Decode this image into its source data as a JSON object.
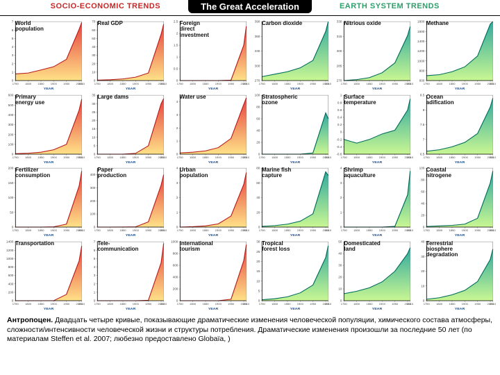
{
  "header": {
    "left_label": "SOCIO-ECONOMIC TRENDS",
    "left_color": "#c62828",
    "main_title": "The Great Acceleration",
    "right_label": "EARTH SYSTEM TRENDS",
    "right_color": "#2e9e6b"
  },
  "caption": {
    "bold": "Антропоцен.",
    "text": " Двадцать четыре кривые, показывающие драматические изменения человеческой популяции, химического состава атмосферы, сложности/интенсивности человеческой жизни и структуры потребления. Драматические изменения произошли за последние 50 лет (по материалам Steffen et al. 2007; любезно предоставлено Globaïa, )"
  },
  "chart_common": {
    "x_label": "YEAR",
    "x_ticks": [
      "1750",
      "1800",
      "1850",
      "1900",
      "1950",
      "2000",
      "2010"
    ],
    "axis_color": "#888",
    "tick_color": "#888",
    "label_fontsize": 6,
    "title_fontsize": 8
  },
  "socio_style": {
    "fill_top": "#e53935",
    "fill_bottom": "#ffe082",
    "stroke": "#b71c1c"
  },
  "earth_style": {
    "fill_top": "#26a69a",
    "fill_bottom": "#c6f68d",
    "stroke": "#006b5a"
  },
  "panels": [
    {
      "title": "World\npopulation",
      "group": "socio",
      "ymax": 7,
      "y_ticks": [
        0,
        1,
        2,
        3,
        4,
        5,
        6,
        7
      ],
      "values": [
        0.79,
        0.9,
        1.26,
        1.65,
        2.52,
        6.1,
        6.9
      ]
    },
    {
      "title": "Real GDP",
      "group": "socio",
      "ymax": 70,
      "y_ticks": [
        0,
        10,
        20,
        30,
        40,
        50,
        60,
        70
      ],
      "values": [
        0.5,
        1,
        2,
        4,
        9,
        55,
        67
      ]
    },
    {
      "title": "Foreign\ndirect\ninvestment",
      "group": "socio",
      "ymax": 2.5,
      "y_ticks": [
        0,
        0.5,
        1,
        1.5,
        2,
        2.5
      ],
      "values": [
        0,
        0,
        0,
        0,
        0.02,
        1.5,
        2.3
      ]
    },
    {
      "title": "Carbon dioxide",
      "group": "earth",
      "ymax": 390,
      "y_ticks": [
        270,
        300,
        330,
        360,
        390
      ],
      "ymin": 270,
      "values": [
        278,
        283,
        288,
        296,
        311,
        370,
        390
      ]
    },
    {
      "title": "Nitrious oxide",
      "group": "earth",
      "ymax": 330,
      "y_ticks": [
        270,
        285,
        300,
        315,
        330
      ],
      "ymin": 270,
      "values": [
        270,
        271,
        273,
        278,
        288,
        316,
        325
      ]
    },
    {
      "title": "Methane",
      "group": "earth",
      "ymax": 1800,
      "y_ticks": [
        600,
        800,
        1000,
        1200,
        1400,
        1600,
        1800
      ],
      "ymin": 600,
      "values": [
        700,
        720,
        780,
        880,
        1100,
        1750,
        1800
      ]
    },
    {
      "title": "Primary\nenergy use",
      "group": "socio",
      "ymax": 600,
      "y_ticks": [
        0,
        100,
        200,
        300,
        400,
        500,
        600
      ],
      "values": [
        5,
        10,
        20,
        45,
        100,
        450,
        560
      ]
    },
    {
      "title": "Large dams",
      "group": "socio",
      "ymax": 35,
      "y_ticks": [
        0,
        5,
        10,
        15,
        20,
        25,
        30,
        35
      ],
      "values": [
        0,
        0,
        0,
        0.5,
        5,
        30,
        33
      ]
    },
    {
      "title": "Water use",
      "group": "socio",
      "ymax": 4.5,
      "y_ticks": [
        0,
        1,
        2,
        3,
        4
      ],
      "values": [
        0.1,
        0.15,
        0.25,
        0.5,
        1.2,
        3.8,
        4.3
      ]
    },
    {
      "title": "Stratospheric\nozone",
      "group": "earth",
      "ymax": 100,
      "y_ticks": [
        0,
        20,
        40,
        60,
        80,
        100
      ],
      "ymin": 0,
      "values": [
        0,
        0,
        0,
        0,
        2,
        70,
        60
      ]
    },
    {
      "title": "Surface\ntemperature",
      "group": "earth",
      "ymax": 1.0,
      "y_ticks": [
        -0.6,
        -0.4,
        -0.2,
        0,
        0.2,
        0.4,
        0.6,
        0.8,
        1.0
      ],
      "ymin": -0.6,
      "values": [
        -0.2,
        -0.3,
        -0.2,
        -0.05,
        0.05,
        0.6,
        0.9
      ]
    },
    {
      "title": "Ocean\nadification",
      "group": "earth",
      "ymax": 8.5,
      "y_ticks": [
        6.5,
        7,
        7.5,
        8,
        8.5
      ],
      "ymin": 6.5,
      "values": [
        6.6,
        6.65,
        6.75,
        6.9,
        7.2,
        8.1,
        8.4
      ]
    },
    {
      "title": "Fertilizer\nconsumption",
      "group": "socio",
      "ymax": 200,
      "y_ticks": [
        0,
        50,
        100,
        150,
        200
      ],
      "values": [
        0,
        0,
        0,
        1,
        10,
        140,
        190
      ]
    },
    {
      "title": "Paper\nproduction",
      "group": "socio",
      "ymax": 450,
      "y_ticks": [
        0,
        100,
        200,
        300,
        400
      ],
      "values": [
        0,
        0,
        0.5,
        2,
        40,
        320,
        400
      ]
    },
    {
      "title": "Urban\npopulation",
      "group": "socio",
      "ymax": 4,
      "y_ticks": [
        0,
        1,
        2,
        3,
        4
      ],
      "values": [
        0,
        0.03,
        0.08,
        0.22,
        0.75,
        2.9,
        3.7
      ]
    },
    {
      "title": "Marine fish\ncapture",
      "group": "earth",
      "ymax": 80,
      "y_ticks": [
        0,
        20,
        40,
        60,
        80
      ],
      "values": [
        1,
        2,
        4,
        8,
        18,
        75,
        70
      ]
    },
    {
      "title": "Shrimp\naquaculture",
      "group": "earth",
      "ymax": 4,
      "y_ticks": [
        0,
        1,
        2,
        3,
        4
      ],
      "values": [
        0,
        0,
        0,
        0,
        0.05,
        2.2,
        3.8
      ]
    },
    {
      "title": "Coastal\nnitrogene",
      "group": "earth",
      "ymax": 100,
      "y_ticks": [
        0,
        20,
        40,
        60,
        80,
        100
      ],
      "values": [
        1,
        2,
        3,
        5,
        15,
        75,
        95
      ]
    },
    {
      "title": "Transportation",
      "group": "socio",
      "ymax": 1400,
      "y_ticks": [
        0,
        200,
        400,
        600,
        800,
        1000,
        1200,
        1400
      ],
      "values": [
        0,
        0,
        0,
        0,
        150,
        950,
        1300
      ]
    },
    {
      "title": "Tele-\ncommunication",
      "group": "socio",
      "ymax": 7,
      "y_ticks": [
        0,
        1,
        2,
        3,
        4,
        5,
        6,
        7
      ],
      "values": [
        0,
        0,
        0,
        0,
        0.05,
        4.5,
        6.8
      ]
    },
    {
      "title": "International\ntourism",
      "group": "socio",
      "ymax": 1000,
      "y_ticks": [
        0,
        200,
        400,
        600,
        800,
        1000
      ],
      "values": [
        0,
        0,
        0,
        0,
        25,
        680,
        950
      ]
    },
    {
      "title": "Tropical\nforest loss",
      "group": "earth",
      "ymax": 30,
      "y_ticks": [
        0,
        5,
        10,
        15,
        20,
        25,
        30
      ],
      "values": [
        0.5,
        1,
        2,
        4,
        8,
        22,
        28
      ]
    },
    {
      "title": "Domesticated\nland",
      "group": "earth",
      "ymax": 50,
      "y_ticks": [
        0,
        10,
        20,
        30,
        40,
        50
      ],
      "values": [
        6,
        8,
        11,
        16,
        25,
        40,
        45
      ]
    },
    {
      "title": "Terrestrial\nbiosphere\ndegradation",
      "group": "earth",
      "ymax": 40,
      "y_ticks": [
        0,
        10,
        20,
        30,
        40
      ],
      "values": [
        1,
        2,
        4,
        7,
        13,
        28,
        35
      ]
    }
  ]
}
